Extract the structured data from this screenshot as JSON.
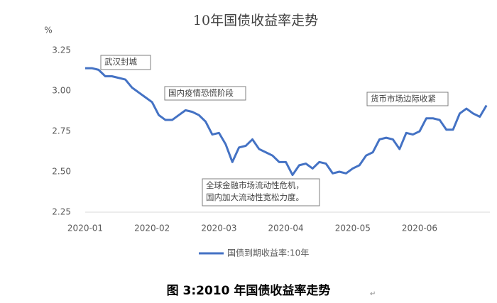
{
  "chart_data": {
    "type": "line",
    "title": "10年国债收益率走势",
    "y_unit": "%",
    "categories": [
      "2020-01",
      null,
      null,
      null,
      null,
      null,
      null,
      null,
      null,
      null,
      "2020-02",
      null,
      null,
      null,
      null,
      null,
      null,
      null,
      null,
      null,
      "2020-03",
      null,
      null,
      null,
      null,
      null,
      null,
      null,
      null,
      null,
      "2020-04",
      null,
      null,
      null,
      null,
      null,
      null,
      null,
      null,
      null,
      "2020-05",
      null,
      null,
      null,
      null,
      null,
      null,
      null,
      null,
      null,
      "2020-06",
      null,
      null,
      null,
      null,
      null,
      null,
      null,
      null,
      null,
      null
    ],
    "series": [
      {
        "name": "国债到期收益率:10年",
        "color": "#4472c4",
        "values": [
          3.14,
          3.14,
          3.13,
          3.09,
          3.09,
          3.08,
          3.07,
          3.02,
          2.99,
          2.96,
          2.93,
          2.85,
          2.82,
          2.82,
          2.85,
          2.88,
          2.87,
          2.85,
          2.81,
          2.73,
          2.74,
          2.67,
          2.56,
          2.65,
          2.66,
          2.7,
          2.64,
          2.62,
          2.6,
          2.56,
          2.56,
          2.48,
          2.54,
          2.55,
          2.52,
          2.56,
          2.55,
          2.49,
          2.5,
          2.49,
          2.52,
          2.54,
          2.6,
          2.62,
          2.7,
          2.71,
          2.7,
          2.64,
          2.74,
          2.73,
          2.75,
          2.83,
          2.83,
          2.82,
          2.76,
          2.76,
          2.86,
          2.89,
          2.86,
          2.84,
          2.91
        ]
      }
    ],
    "ylim": [
      2.25,
      3.25
    ],
    "yticks": [
      2.25,
      {
        "value": 2.5,
        "label": "2.50"
      },
      2.75,
      {
        "value": 3,
        "label": "3.00"
      },
      3.25
    ],
    "grid": false,
    "annotations": [
      {
        "lines": [
          "武汉封城"
        ]
      },
      {
        "lines": [
          "国内疫情恐慌阶段"
        ]
      },
      {
        "lines": [
          "全球金融市场流动性危机，",
          "国内加大流动性宽松力度。"
        ]
      },
      {
        "lines": [
          "货币市场边际收紧"
        ]
      }
    ]
  },
  "caption": "图 3:2010 年国债收益率走势",
  "caption_mark": "↵"
}
